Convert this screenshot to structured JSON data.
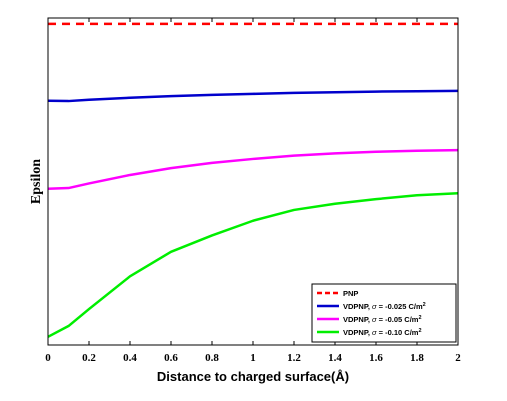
{
  "chart_data": {
    "type": "line",
    "title": "",
    "xlabel": "Distance to charged surface(Å)",
    "ylabel": "Epsilon",
    "xlim": [
      0,
      2
    ],
    "xticks": [
      0,
      0.2,
      0.4,
      0.6,
      0.8,
      1,
      1.2,
      1.4,
      1.6,
      1.8,
      2
    ],
    "xtick_labels": [
      "0",
      "0.2",
      "0.4",
      "0.6",
      "0.8",
      "1",
      "1.2",
      "1.4",
      "1.6",
      "1.8",
      "2"
    ],
    "ylim": [
      0,
      100
    ],
    "y_ticks_shown": false,
    "grid": false,
    "legend_position": "bottom-right",
    "series": [
      {
        "name": "PNP",
        "color": "#ff0000",
        "dash": "dashed",
        "x": [
          0,
          2
        ],
        "y": [
          98.2,
          98.2
        ]
      },
      {
        "name": "VDPNP, σ = -0.025 C/m²",
        "legend": {
          "prefix": "VDPNP, ",
          "sigma": "σ",
          "mid": " = -0.025 C/m",
          "sup": "2"
        },
        "color": "#0000cc",
        "dash": "solid",
        "x": [
          0,
          0.1,
          0.2,
          0.4,
          0.6,
          0.8,
          1.0,
          1.2,
          1.4,
          1.6,
          1.8,
          2.0
        ],
        "y": [
          74.7,
          74.6,
          75.0,
          75.6,
          76.1,
          76.5,
          76.8,
          77.1,
          77.3,
          77.5,
          77.6,
          77.7
        ]
      },
      {
        "name": "VDPNP, σ = -0.05 C/m²",
        "legend": {
          "prefix": "VDPNP, ",
          "sigma": "σ",
          "mid": " = -0.05 C/m",
          "sup": "2"
        },
        "color": "#ff00ff",
        "dash": "solid",
        "x": [
          0,
          0.1,
          0.2,
          0.4,
          0.6,
          0.8,
          1.0,
          1.2,
          1.4,
          1.6,
          1.8,
          2.0
        ],
        "y": [
          47.8,
          48.0,
          49.4,
          52.0,
          54.1,
          55.7,
          56.9,
          57.9,
          58.6,
          59.1,
          59.4,
          59.6
        ]
      },
      {
        "name": "VDPNP, σ = -0.10 C/m²",
        "legend": {
          "prefix": "VDPNP, ",
          "sigma": "σ",
          "mid": " = -0.10 C/m",
          "sup": "2"
        },
        "color": "#00ee00",
        "dash": "solid",
        "x": [
          0,
          0.1,
          0.2,
          0.4,
          0.6,
          0.8,
          1.0,
          1.2,
          1.4,
          1.6,
          1.8,
          2.0
        ],
        "y": [
          2.5,
          5.8,
          11.0,
          21.0,
          28.5,
          33.5,
          38.0,
          41.3,
          43.2,
          44.6,
          45.8,
          46.4
        ]
      }
    ]
  }
}
